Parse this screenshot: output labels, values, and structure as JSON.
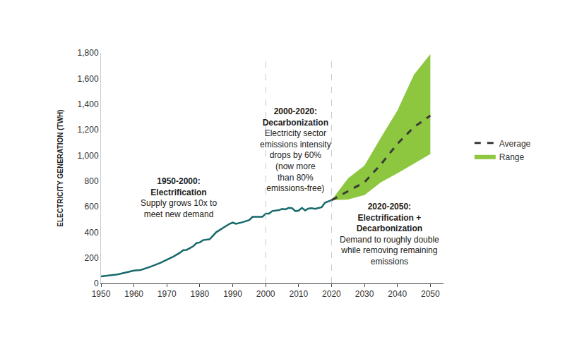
{
  "chart_data": {
    "type": "line",
    "y_label": "ELECTRICITY GENERATION (TWH)",
    "xlim": [
      1950,
      2054
    ],
    "xticks": [
      1950,
      1960,
      1970,
      1980,
      1990,
      2000,
      2010,
      2020,
      2030,
      2040,
      2050
    ],
    "ylim": [
      0,
      1800
    ],
    "yticks": [
      0,
      200,
      400,
      600,
      800,
      {
        "value": 1000,
        "label": "1,000"
      },
      {
        "value": 1200,
        "label": "1,200"
      },
      {
        "value": 1400,
        "label": "1,400"
      },
      {
        "value": 1600,
        "label": "1,600"
      },
      {
        "value": 1800,
        "label": "1,800"
      }
    ],
    "grid": false,
    "legend": "right",
    "dividers": [
      2000,
      2020
    ],
    "series": [
      {
        "color": "#17696b",
        "x": [
          1950,
          1952,
          1955,
          1958,
          1960,
          1962,
          1965,
          1968,
          1970,
          1972,
          1974,
          1975,
          1976,
          1978,
          1979,
          1980,
          1981,
          1983,
          1985,
          1987,
          1989,
          1990,
          1991,
          1993,
          1995,
          1996,
          1998,
          1999,
          2000,
          2001,
          2002,
          2003,
          2004,
          2005,
          2006,
          2007,
          2008,
          2009,
          2010,
          2011,
          2012,
          2013,
          2014,
          2015,
          2016,
          2017,
          2018,
          2019,
          2020
        ],
        "values": [
          55,
          60,
          70,
          88,
          100,
          105,
          130,
          160,
          185,
          210,
          240,
          260,
          262,
          290,
          315,
          320,
          338,
          345,
          400,
          435,
          465,
          475,
          465,
          478,
          495,
          520,
          520,
          520,
          545,
          545,
          565,
          568,
          572,
          582,
          578,
          590,
          588,
          565,
          568,
          590,
          570,
          585,
          588,
          582,
          590,
          595,
          630,
          640,
          650
        ]
      },
      {
        "name": "Range",
        "type": "range",
        "color": "#8dc63f",
        "x": [
          2020,
          2025,
          2030,
          2035,
          2040,
          2045,
          2050
        ],
        "low": [
          650,
          655,
          690,
          790,
          860,
          935,
          1010
        ],
        "high": [
          650,
          820,
          920,
          1140,
          1350,
          1630,
          1790
        ]
      },
      {
        "name": "Average",
        "color": "#3a3a3a",
        "line_style": "dashed",
        "x": [
          2020,
          2025,
          2030,
          2035,
          2040,
          2045,
          2050
        ],
        "values": [
          650,
          720,
          790,
          930,
          1090,
          1220,
          1310
        ]
      }
    ],
    "annotations": [
      {
        "title": [
          "1950-2000:",
          "Electrification"
        ],
        "text": [
          "Supply grows 10x to",
          "meet new demand"
        ]
      },
      {
        "title": [
          "2000-2020:",
          "Decarbonization"
        ],
        "text": [
          "Electricity sector",
          "emissions intensity",
          "drops by 60%",
          "(now more",
          "than 80%",
          "emissions-free)"
        ]
      },
      {
        "title": [
          "2020-2050:",
          "Electrification +",
          "Decarbonization"
        ],
        "text": [
          "Demand to roughly double",
          "while removing remaining",
          "emissions"
        ]
      }
    ]
  }
}
